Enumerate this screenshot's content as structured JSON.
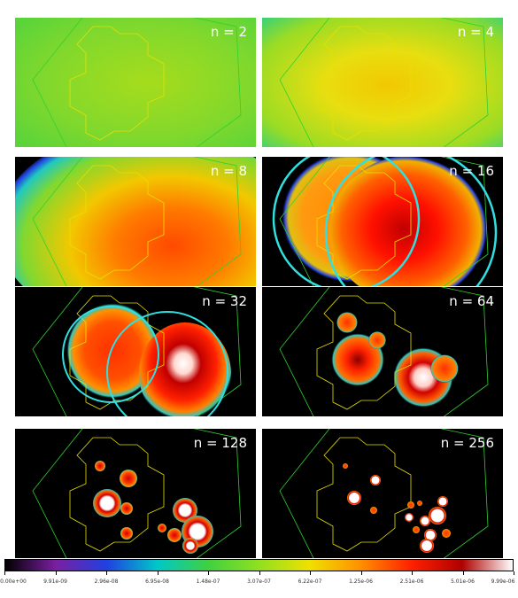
{
  "panels": [
    {
      "label": "n = 2"
    },
    {
      "label": "n = 4"
    },
    {
      "label": "n = 8"
    },
    {
      "label": "n = 16"
    },
    {
      "label": "n = 32"
    },
    {
      "label": "n = 64"
    },
    {
      "label": "n = 128"
    },
    {
      "label": "n = 256"
    }
  ],
  "colorbar": {
    "ticks": [
      "0.00e+00",
      "9.91e-09",
      "2.96e-08",
      "6.95e-08",
      "1.48e-07",
      "3.07e-07",
      "6.22e-07",
      "1.25e-06",
      "2.51e-06",
      "5.01e-06",
      "9.99e-06"
    ],
    "colors": {
      "c0": "#000000",
      "c1": "#7a1fa2",
      "c2": "#2040e0",
      "c3": "#00c8c8",
      "c4": "#40d040",
      "c5": "#90e020",
      "c6": "#f0e000",
      "c7": "#ff9000",
      "c8": "#ff2000",
      "c9": "#b00000",
      "c10": "#ffffff"
    }
  },
  "overlay_colors": {
    "footprint": "#e8e000",
    "outline": "#30d030",
    "circle": "#30e0e0"
  }
}
